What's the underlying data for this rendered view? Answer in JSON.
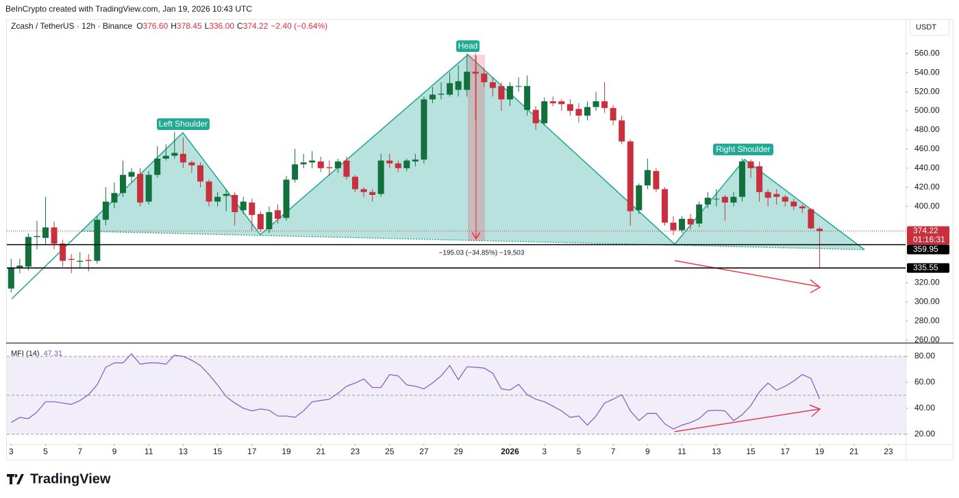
{
  "header": {
    "attribution": "BeInCrypto created with TradingView.com, Jan 19, 2026 10:43 UTC",
    "currency": "USDT"
  },
  "footer": {
    "brand": "TradingView"
  },
  "chart_data": [
    {
      "type": "candlestick",
      "title": "Zcash / TetherUS · 12h · Binance",
      "legend": [
        [
          "O",
          "376.60"
        ],
        [
          "H",
          "378.45"
        ],
        [
          "L",
          "336.00"
        ],
        [
          "C",
          "374.22"
        ]
      ],
      "change": "−2.40 (−0.64%)",
      "up_color": "#12703c",
      "down_color": "#c8303d",
      "open": [
        314,
        335,
        337,
        368,
        367,
        378,
        361,
        345,
        342,
        344,
        343,
        386,
        404,
        414,
        431,
        434,
        405,
        433,
        450,
        453,
        455,
        446,
        443,
        426,
        405,
        411,
        412,
        396,
        404,
        392,
        376,
        396,
        388,
        428,
        444,
        446,
        447,
        441,
        440,
        448,
        431,
        418,
        415,
        413,
        448,
        445,
        440,
        447,
        449,
        512,
        517,
        517,
        522,
        522,
        541,
        539,
        530,
        526,
        512,
        526,
        501,
        501,
        487,
        510,
        510,
        507,
        502,
        495,
        504,
        510,
        503,
        490,
        468,
        396,
        422,
        437,
        418,
        383,
        375,
        387,
        382,
        402,
        408,
        410,
        404,
        410,
        447,
        442,
        415,
        413,
        410,
        405,
        400,
        397,
        376.6
      ],
      "high": [
        345,
        345,
        372,
        385,
        410,
        384,
        365,
        350,
        352,
        350,
        390,
        420,
        425,
        448,
        440,
        440,
        437,
        463,
        465,
        478,
        472,
        448,
        446,
        428,
        415,
        418,
        415,
        410,
        408,
        395,
        400,
        402,
        432,
        460,
        455,
        458,
        452,
        448,
        450,
        452,
        433,
        420,
        418,
        455,
        455,
        448,
        450,
        455,
        515,
        525,
        530,
        540,
        548,
        560,
        560,
        545,
        535,
        530,
        530,
        535,
        537,
        505,
        514,
        515,
        512,
        512,
        508,
        510,
        520,
        530,
        506,
        495,
        470,
        424,
        450,
        440,
        420,
        390,
        390,
        392,
        405,
        415,
        418,
        412,
        415,
        450,
        449,
        447,
        418,
        418,
        412,
        408,
        402,
        398,
        378.45
      ],
      "low": [
        310,
        330,
        333,
        355,
        360,
        355,
        337,
        330,
        335,
        332,
        340,
        380,
        398,
        410,
        425,
        400,
        402,
        430,
        448,
        450,
        440,
        435,
        420,
        400,
        400,
        395,
        380,
        392,
        375,
        373,
        372,
        382,
        385,
        425,
        440,
        440,
        436,
        432,
        435,
        428,
        415,
        410,
        405,
        410,
        440,
        436,
        437,
        442,
        445,
        508,
        512,
        515,
        515,
        515,
        490,
        525,
        515,
        500,
        505,
        520,
        495,
        480,
        485,
        505,
        500,
        495,
        488,
        490,
        500,
        498,
        485,
        465,
        380,
        392,
        418,
        415,
        380,
        370,
        372,
        376,
        378,
        398,
        400,
        385,
        400,
        405,
        430,
        405,
        400,
        402,
        400,
        396,
        393,
        376,
        336
      ],
      "close": [
        336,
        338,
        368,
        369,
        378,
        361,
        343,
        344,
        343,
        343,
        386,
        405,
        414,
        433,
        436,
        404,
        433,
        450,
        453,
        456,
        446,
        443,
        426,
        405,
        410,
        413,
        394,
        405,
        391,
        376,
        394,
        387,
        428,
        444,
        446,
        448,
        440,
        440,
        447,
        431,
        418,
        415,
        412,
        448,
        445,
        440,
        448,
        449,
        512,
        517,
        518,
        529,
        531,
        541,
        539,
        530,
        524,
        512,
        526,
        526,
        526,
        487,
        510,
        508,
        507,
        500,
        495,
        504,
        510,
        503,
        490,
        468,
        395,
        422,
        438,
        418,
        383,
        375,
        387,
        381,
        402,
        409,
        408,
        404,
        410,
        447,
        440,
        415,
        409,
        410,
        405,
        400,
        398,
        377,
        374.22
      ],
      "countdown": "01:16:31",
      "price_lines": [
        359.95,
        335.55
      ],
      "annotations": [
        "Left Shoulder",
        "Head",
        "Right Shoulder"
      ],
      "measure_label": "−195.03 (−34.85%) −19,503",
      "xlim": [
        -0.5,
        104
      ],
      "ylim": [
        258,
        596
      ],
      "yticks": [
        {
          "value": 260,
          "label": "260.00"
        },
        {
          "value": 280,
          "label": "280.00"
        },
        {
          "value": 300,
          "label": "300.00"
        },
        {
          "value": 320,
          "label": "320.00"
        },
        {
          "value": 400,
          "label": "400.00"
        },
        {
          "value": 420,
          "label": "420.00"
        },
        {
          "value": 440,
          "label": "440.00"
        },
        {
          "value": 460,
          "label": "460.00"
        },
        {
          "value": 480,
          "label": "480.00"
        },
        {
          "value": 500,
          "label": "500.00"
        },
        {
          "value": 520,
          "label": "520.00"
        },
        {
          "value": 540,
          "label": "540.00"
        },
        {
          "value": 560,
          "label": "560.00"
        }
      ],
      "grid": false
    },
    {
      "type": "line",
      "title": "MFI (14)",
      "color": "#7e57c2",
      "values": [
        29,
        33,
        32,
        37,
        45,
        45,
        44,
        43,
        46,
        50.5,
        58,
        71.6,
        75,
        75,
        82,
        74,
        75,
        75,
        74,
        81,
        80,
        77,
        73,
        66,
        58,
        49,
        44,
        40,
        38,
        39.5,
        38.5,
        34,
        34,
        33,
        38,
        45,
        46,
        47,
        51.5,
        57,
        59.5,
        62.6,
        56,
        56,
        66,
        65,
        58,
        57,
        55,
        59.5,
        65,
        73,
        62,
        72,
        71.6,
        71,
        67,
        55,
        54,
        58.4,
        50.5,
        47,
        45,
        41.6,
        38,
        33,
        34,
        27,
        34,
        44,
        47,
        50.5,
        38,
        30.5,
        36,
        36,
        28,
        24,
        27,
        29,
        32,
        38,
        38.5,
        38,
        30.5,
        35,
        42,
        52.6,
        59.5,
        54,
        57,
        61,
        66,
        63,
        47.31
      ],
      "band": [
        20,
        80
      ],
      "midline": 50,
      "xlim": [
        -0.5,
        104
      ],
      "ylim": [
        13,
        89.5
      ],
      "yticks": [
        {
          "value": 20,
          "label": "20.00"
        },
        {
          "value": 40,
          "label": "40.00"
        },
        {
          "value": 60,
          "label": "60.00"
        },
        {
          "value": 80,
          "label": "80.00"
        }
      ],
      "xticks": [
        {
          "value": 0,
          "label": "3"
        },
        {
          "value": 4,
          "label": "5"
        },
        {
          "value": 8,
          "label": "7"
        },
        {
          "value": 12,
          "label": "9"
        },
        {
          "value": 16,
          "label": "11"
        },
        {
          "value": 20,
          "label": "13"
        },
        {
          "value": 24,
          "label": "15"
        },
        {
          "value": 28,
          "label": "17"
        },
        {
          "value": 32,
          "label": "19"
        },
        {
          "value": 36,
          "label": "21"
        },
        {
          "value": 40,
          "label": "23"
        },
        {
          "value": 44,
          "label": "25"
        },
        {
          "value": 48,
          "label": "27"
        },
        {
          "value": 52,
          "label": "29"
        },
        {
          "value": 58,
          "label": "2026"
        },
        {
          "value": 62,
          "label": "3"
        },
        {
          "value": 66,
          "label": "5"
        },
        {
          "value": 70,
          "label": "7"
        },
        {
          "value": 74,
          "label": "9"
        },
        {
          "value": 78,
          "label": "11"
        },
        {
          "value": 82,
          "label": "13"
        },
        {
          "value": 86,
          "label": "15"
        },
        {
          "value": 90,
          "label": "17"
        },
        {
          "value": 94,
          "label": "19"
        },
        {
          "value": 98,
          "label": "21"
        },
        {
          "value": 102,
          "label": "23"
        }
      ]
    }
  ]
}
